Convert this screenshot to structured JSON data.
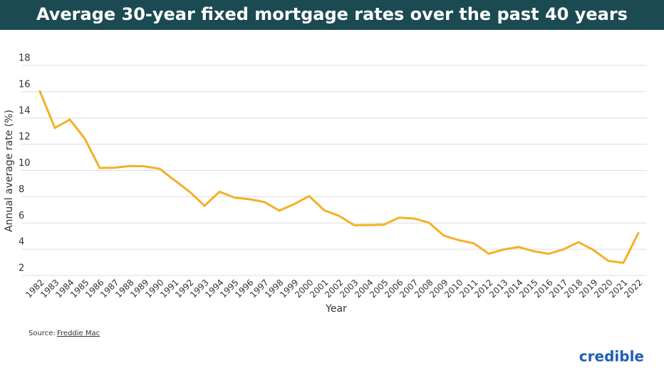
{
  "chart_data": {
    "type": "line",
    "title": "Average 30-year fixed mortgage rates over the past 40 years",
    "x_label": "Year",
    "y_label": "Annual average rate (%)",
    "source_label": "Source:",
    "source": "Freddie Mac",
    "brand": "credible",
    "categories": [
      "1982",
      "1983",
      "1984",
      "1985",
      "1986",
      "1987",
      "1988",
      "1989",
      "1990",
      "1991",
      "1992",
      "1993",
      "1994",
      "1995",
      "1996",
      "1997",
      "1998",
      "1999",
      "2000",
      "2001",
      "2002",
      "2003",
      "2004",
      "2005",
      "2006",
      "2007",
      "2008",
      "2009",
      "2010",
      "2011",
      "2012",
      "2013",
      "2014",
      "2015",
      "2016",
      "2017",
      "2018",
      "2019",
      "2020",
      "2021",
      "2022"
    ],
    "series": [
      {
        "name": "Annual average rate",
        "color": "#f5b025",
        "values": [
          16.04,
          13.24,
          13.88,
          12.43,
          10.19,
          10.21,
          10.34,
          10.32,
          10.13,
          9.25,
          8.39,
          7.31,
          8.38,
          7.93,
          7.81,
          7.6,
          6.94,
          7.44,
          8.05,
          6.97,
          6.54,
          5.83,
          5.84,
          5.87,
          6.41,
          6.34,
          6.03,
          5.04,
          4.69,
          4.45,
          3.66,
          3.98,
          4.17,
          3.85,
          3.65,
          3.99,
          4.54,
          3.94,
          3.11,
          2.96,
          5.23
        ]
      }
    ],
    "ylim": [
      2,
      18
    ],
    "yticks": [
      2,
      4,
      6,
      8,
      10,
      12,
      14,
      16,
      18
    ],
    "grid": true
  }
}
